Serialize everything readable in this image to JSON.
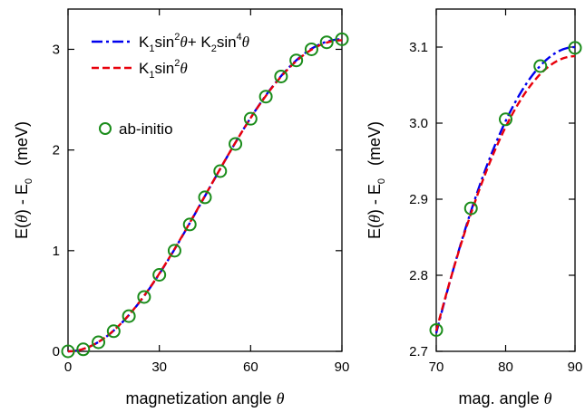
{
  "chart_data": [
    {
      "type": "line",
      "title": "",
      "xlabel": "magnetization angle θ",
      "ylabel": "E(θ) - E₀   (meV)",
      "xlim": [
        0,
        90
      ],
      "ylim": [
        0,
        3.4
      ],
      "xticks": [
        0,
        30,
        60,
        90
      ],
      "yticks": [
        0,
        1,
        2,
        3
      ],
      "xtick_labels": [
        "0",
        "30",
        "60",
        "90"
      ],
      "ytick_labels": [
        "0",
        "1",
        "2",
        "3"
      ],
      "grid": false,
      "legend_position": "top-left",
      "series": [
        {
          "name": "K₁sin²θ+ K₂sin⁴θ",
          "style": "dash-dot",
          "color": "#0000ee",
          "formula": {
            "K1": 3.07,
            "K2": 0.03
          }
        },
        {
          "name": "K₁sin²θ",
          "style": "dashed",
          "color": "#e8000b",
          "formula": {
            "K1": 3.09,
            "K2": 0
          }
        },
        {
          "name": "ab-initio",
          "style": "markers",
          "color": "#1a8c1a",
          "x": [
            0,
            5,
            10,
            15,
            20,
            25,
            30,
            35,
            40,
            45,
            50,
            55,
            60,
            65,
            70,
            75,
            80,
            85,
            90
          ],
          "y": [
            0.0,
            0.02,
            0.09,
            0.2,
            0.35,
            0.54,
            0.76,
            1.0,
            1.26,
            1.53,
            1.79,
            2.06,
            2.31,
            2.53,
            2.73,
            2.89,
            3.0,
            3.07,
            3.1
          ]
        }
      ]
    },
    {
      "type": "line",
      "title": "",
      "xlabel": "mag. angle θ",
      "ylabel": "E(θ) - E₀   (meV)",
      "xlim": [
        70,
        90
      ],
      "ylim": [
        2.7,
        3.15
      ],
      "xticks": [
        70,
        80,
        90
      ],
      "yticks": [
        2.7,
        2.8,
        2.9,
        3.0,
        3.1
      ],
      "xtick_labels": [
        "70",
        "80",
        "90"
      ],
      "ytick_labels": [
        "2.7",
        "2.8",
        "2.9",
        "3.0",
        "3.1"
      ],
      "grid": false,
      "series": [
        {
          "name": "K₁sin²θ+ K₂sin⁴θ",
          "style": "dash-dot",
          "color": "#0000ee",
          "formula": {
            "K1": 2.97,
            "K2": 0.13
          }
        },
        {
          "name": "K₁sin²θ",
          "style": "dashed",
          "color": "#e8000b",
          "formula": {
            "K1": 3.088,
            "K2": 0
          }
        },
        {
          "name": "ab-initio",
          "style": "markers",
          "color": "#1a8c1a",
          "x": [
            70,
            75,
            80,
            85,
            90
          ],
          "y": [
            2.728,
            2.888,
            3.005,
            3.075,
            3.099
          ]
        }
      ]
    }
  ],
  "legend": {
    "fit1": {
      "k1": "K",
      "k1_sub": "1",
      "sin1": "sin",
      "sin1_sup": "2",
      "theta1": "θ",
      "plus": "+ K",
      "k2_sub": "2",
      "sin2": "sin",
      "sin2_sup": "4",
      "theta2": "θ"
    },
    "fit2": {
      "k1": "K",
      "k1_sub": "1",
      "sin1": "sin",
      "sin1_sup": "2",
      "theta1": "θ"
    },
    "markers": {
      "label": "ab-initio"
    }
  },
  "axis_text": {
    "left_xlabel_main": "magnetization angle ",
    "right_xlabel_main": "mag. angle ",
    "theta": "θ",
    "ylabel_e": "E(",
    "ylabel_mid": ") - E",
    "ylabel_sub": "0",
    "ylabel_unit": "(meV)"
  }
}
